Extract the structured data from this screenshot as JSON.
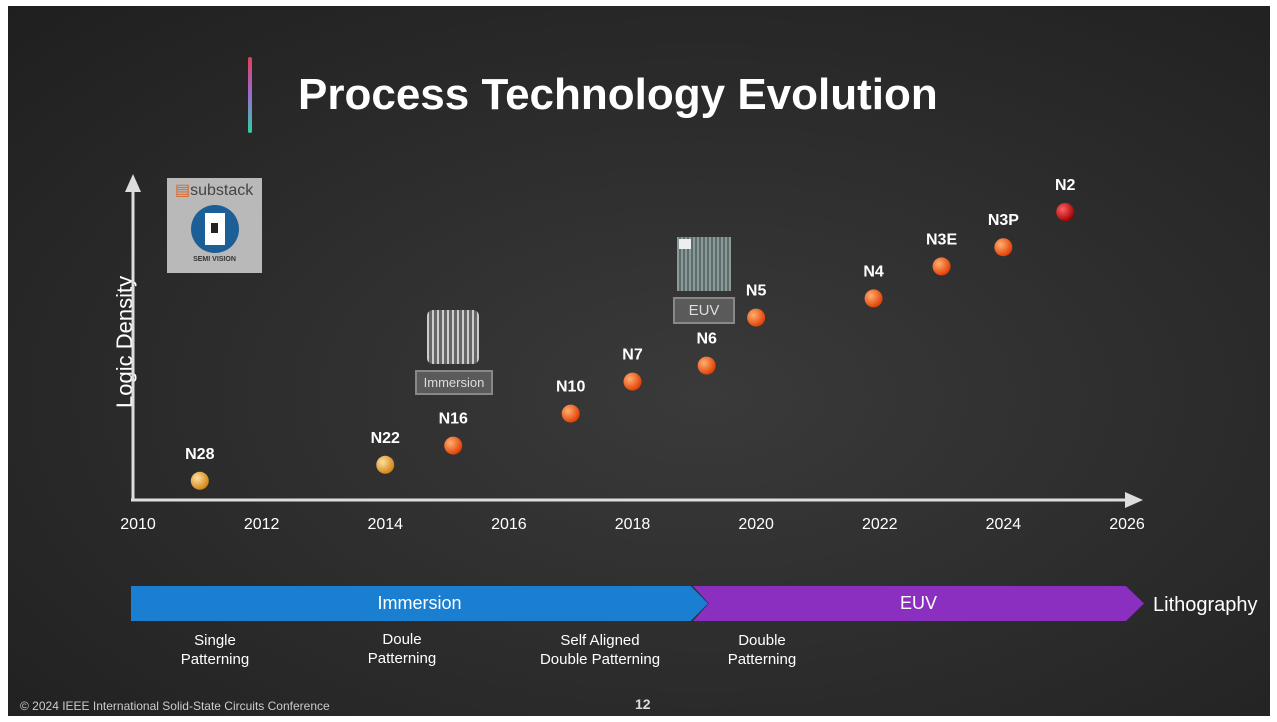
{
  "title": "Process Technology Evolution",
  "logo": {
    "brand": "substack",
    "name": "SEMI VISION"
  },
  "chart_data": {
    "type": "scatter",
    "ylabel": "Logic Density",
    "xlim": [
      2010,
      2026
    ],
    "ylim": [
      0,
      100
    ],
    "y_units": "relative (no ticks shown)",
    "xticks": [
      "2010",
      "2012",
      "2014",
      "2016",
      "2018",
      "2020",
      "2022",
      "2024",
      "2026"
    ],
    "points": [
      {
        "label": "N28",
        "x": 2011.0,
        "y": 6,
        "color": "#f0a030"
      },
      {
        "label": "N22",
        "x": 2014.0,
        "y": 11,
        "color": "#f0a030"
      },
      {
        "label": "N16",
        "x": 2015.1,
        "y": 17,
        "color": "#f05a10"
      },
      {
        "label": "N10",
        "x": 2017.0,
        "y": 27,
        "color": "#f05a10"
      },
      {
        "label": "N7",
        "x": 2018.0,
        "y": 37,
        "color": "#f05a10"
      },
      {
        "label": "N6",
        "x": 2019.2,
        "y": 42,
        "color": "#f05a10"
      },
      {
        "label": "N5",
        "x": 2020.0,
        "y": 57,
        "color": "#f05a10"
      },
      {
        "label": "N4",
        "x": 2021.9,
        "y": 63,
        "color": "#f05a10"
      },
      {
        "label": "N3E",
        "x": 2023.0,
        "y": 73,
        "color": "#f05a10"
      },
      {
        "label": "N3P",
        "x": 2024.0,
        "y": 79,
        "color": "#f05a10"
      },
      {
        "label": "N2",
        "x": 2025.0,
        "y": 90,
        "color": "#d01010"
      }
    ],
    "annotations": [
      {
        "label": "Immersion",
        "x": 2015
      },
      {
        "label": "EUV",
        "x": 2019
      }
    ]
  },
  "lithography": {
    "label": "Lithography",
    "bands": [
      {
        "label": "Immersion",
        "color": "#1a7fd0"
      },
      {
        "label": "EUV",
        "color": "#8a2fc0"
      }
    ],
    "patterning": [
      "Single\nPatterning",
      "Doule\nPatterning",
      "Self Aligned\nDouble Patterning",
      "Double\nPatterning"
    ]
  },
  "footer": "© 2024 IEEE International Solid-State Circuits Conference",
  "page_number": "12"
}
